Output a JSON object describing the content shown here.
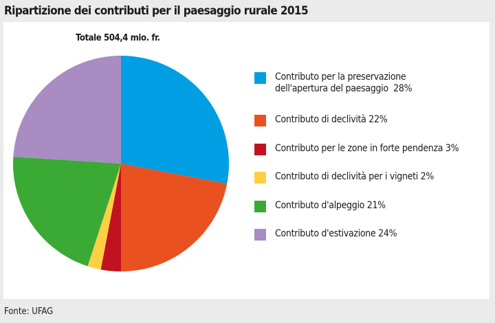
{
  "title": "Ripartizione dei contributi per il paesaggio rurale 2015",
  "source": "Fonte: UFAG",
  "chart_data": {
    "type": "pie",
    "title": "Ripartizione dei contributi per il paesaggio rurale 2015",
    "subtitle": "Totale 504,4 mio. fr.",
    "legend_position": "right",
    "unit": "%",
    "slices": [
      {
        "label": "Contributo per la preservazione\ndell'apertura del paesaggio  28%",
        "value": 28,
        "color": "#009fe3"
      },
      {
        "label": "Contributo di declività 22%",
        "value": 22,
        "color": "#ea5120"
      },
      {
        "label": "Contributo per le zone in forte pendenza 3%",
        "value": 3,
        "color": "#c1121f"
      },
      {
        "label": "Contributo di declività per i vigneti 2%",
        "value": 2,
        "color": "#fdd043"
      },
      {
        "label": "Contributo d'alpeggio 21%",
        "value": 21,
        "color": "#3aaa35"
      },
      {
        "label": "Contributo d'estivazione 24%",
        "value": 24,
        "color": "#a88cc2"
      }
    ]
  }
}
